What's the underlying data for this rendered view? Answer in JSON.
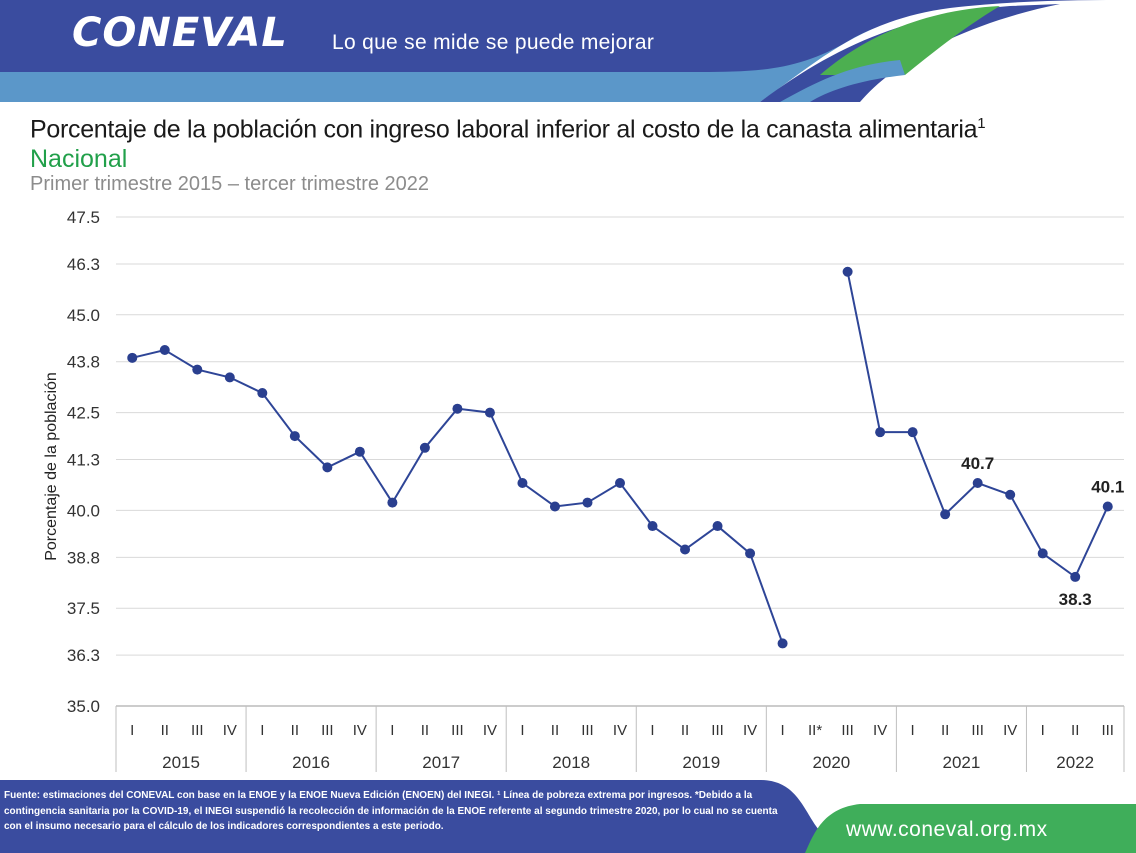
{
  "header": {
    "logo_text": "CONEVAL",
    "tagline": "Lo que se mide se puede mejorar",
    "colors": {
      "blue": "#3a4c9f",
      "light_blue": "#5b97c9",
      "green": "#4caf50"
    }
  },
  "chart_data": {
    "type": "line",
    "title": "Porcentaje de la población con ingreso laboral inferior al costo de la canasta alimentaria",
    "title_sup": "1",
    "subtitle": "Nacional",
    "period": "Primer trimestre 2015 – tercer trimestre 2022",
    "ylabel": "Porcentaje de la población",
    "ylim": [
      35.0,
      47.5
    ],
    "yticks": [
      "35.0",
      "36.3",
      "37.5",
      "38.8",
      "40.0",
      "41.3",
      "42.5",
      "43.8",
      "45.0",
      "46.3",
      "47.5"
    ],
    "years": [
      {
        "label": "2015",
        "quarters": [
          "I",
          "II",
          "III",
          "IV"
        ]
      },
      {
        "label": "2016",
        "quarters": [
          "I",
          "II",
          "III",
          "IV"
        ]
      },
      {
        "label": "2017",
        "quarters": [
          "I",
          "II",
          "III",
          "IV"
        ]
      },
      {
        "label": "2018",
        "quarters": [
          "I",
          "II",
          "III",
          "IV"
        ]
      },
      {
        "label": "2019",
        "quarters": [
          "I",
          "II",
          "III",
          "IV"
        ]
      },
      {
        "label": "2020",
        "quarters": [
          "I",
          "II*",
          "III",
          "IV"
        ]
      },
      {
        "label": "2021",
        "quarters": [
          "I",
          "II",
          "III",
          "IV"
        ]
      },
      {
        "label": "2022",
        "quarters": [
          "I",
          "II",
          "III"
        ]
      }
    ],
    "values": [
      43.9,
      44.1,
      43.6,
      43.4,
      43.0,
      41.9,
      41.1,
      41.5,
      40.2,
      41.6,
      42.6,
      42.5,
      40.7,
      40.1,
      40.2,
      40.7,
      39.6,
      39.0,
      39.6,
      38.9,
      36.6,
      null,
      46.1,
      42.0,
      42.0,
      39.9,
      40.7,
      40.4,
      38.9,
      38.3,
      40.1
    ],
    "data_labels": [
      {
        "index": 26,
        "text": "40.7",
        "pos": "above"
      },
      {
        "index": 29,
        "text": "38.3",
        "pos": "below"
      },
      {
        "index": 30,
        "text": "40.1",
        "pos": "above"
      }
    ],
    "grid": true,
    "line_color": "#2e4597",
    "marker_color": "#2a3f8f"
  },
  "footer": {
    "note": "Fuente: estimaciones del CONEVAL con base en la ENOE y la ENOE Nueva Edición (ENOEN) del INEGI. ¹ Línea de pobreza extrema por ingresos. *Debido a la contingencia sanitaria por la COVID-19, el INEGI suspendió la recolección de información de la ENOE referente al segundo trimestre 2020, por lo cual no se cuenta con el insumo necesario para el cálculo de los indicadores correspondientes a este periodo.",
    "url": "www.coneval.org.mx"
  }
}
